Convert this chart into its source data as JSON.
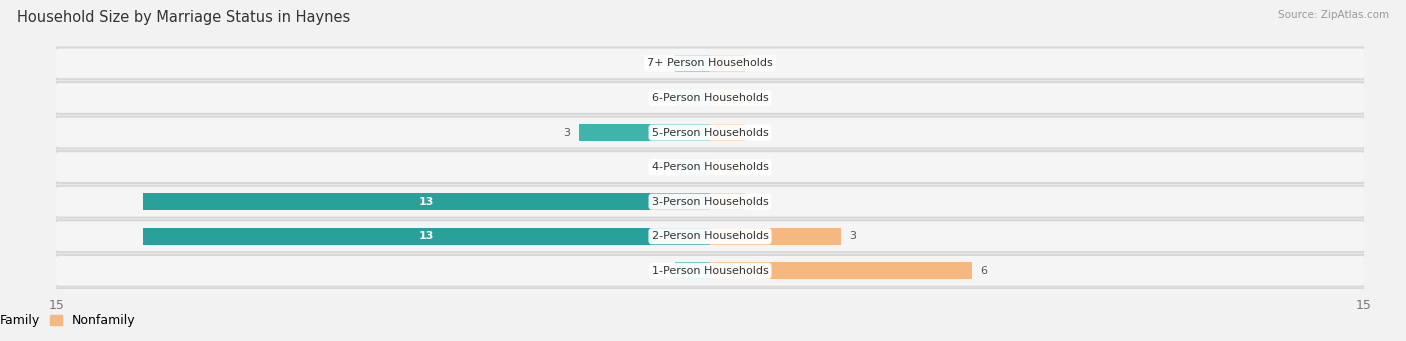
{
  "title": "Household Size by Marriage Status in Haynes",
  "source": "Source: ZipAtlas.com",
  "categories": [
    "7+ Person Households",
    "6-Person Households",
    "5-Person Households",
    "4-Person Households",
    "3-Person Households",
    "2-Person Households",
    "1-Person Households"
  ],
  "family_values": [
    0,
    0,
    3,
    0,
    13,
    13,
    0
  ],
  "nonfamily_values": [
    0,
    0,
    0,
    0,
    0,
    3,
    6
  ],
  "family_color": "#3db5ad",
  "family_color_dark": "#2aa09a",
  "nonfamily_color": "#f5b97f",
  "bar_height": 0.6,
  "stub_size": 0.8,
  "xlim": 15,
  "background_color": "#f2f2f2",
  "row_bg_color": "#e8e8e8",
  "row_bg_inner": "#f5f5f5",
  "title_fontsize": 10.5,
  "source_fontsize": 7.5,
  "label_fontsize": 8,
  "value_fontsize": 8,
  "tick_fontsize": 9,
  "legend_fontsize": 9
}
